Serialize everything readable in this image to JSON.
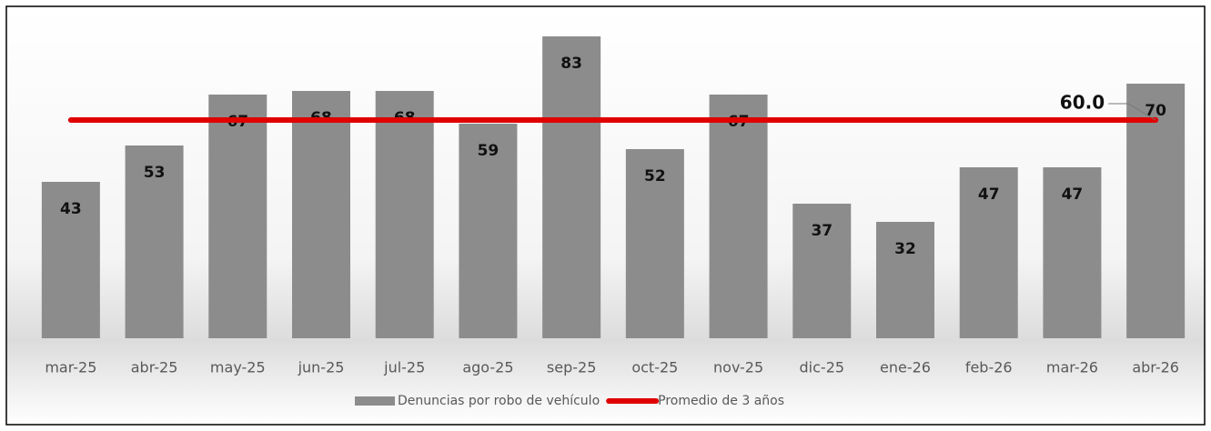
{
  "chart_data": {
    "type": "bar",
    "categories": [
      "mar-25",
      "abr-25",
      "may-25",
      "jun-25",
      "jul-25",
      "ago-25",
      "sep-25",
      "oct-25",
      "nov-25",
      "dic-25",
      "ene-26",
      "feb-26",
      "mar-26",
      "abr-26"
    ],
    "series": [
      {
        "name": "Denuncias por robo de vehículo",
        "type": "bar",
        "color": "#8c8c8c",
        "values": [
          43,
          53,
          67,
          68,
          68,
          59,
          83,
          52,
          67,
          37,
          32,
          47,
          47,
          70
        ]
      },
      {
        "name": "Promedio de 3 años",
        "type": "line",
        "color": "#e00000",
        "values": [
          60,
          60,
          60,
          60,
          60,
          60,
          60,
          60,
          60,
          60,
          60,
          60,
          60,
          60
        ],
        "value_labels": [
          null,
          null,
          null,
          null,
          null,
          null,
          null,
          null,
          null,
          null,
          null,
          null,
          null,
          "60.0"
        ]
      }
    ],
    "ylim": [
      0,
      88
    ],
    "legend": "bottom"
  }
}
